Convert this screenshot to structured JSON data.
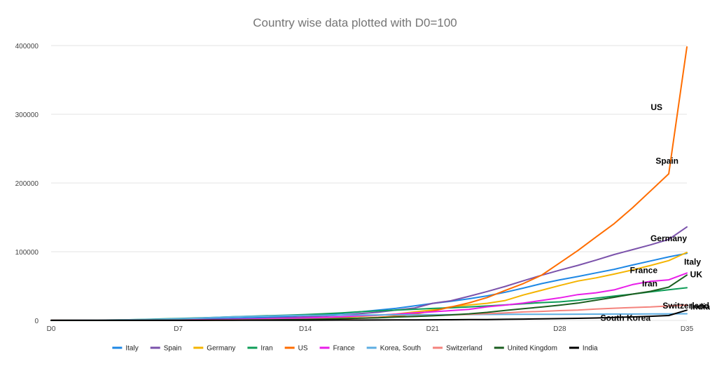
{
  "chart_data": {
    "type": "line",
    "title": "Country wise data plotted with D0=100",
    "xlabel": "",
    "ylabel": "",
    "x": [
      0,
      1,
      2,
      3,
      4,
      5,
      6,
      7,
      8,
      9,
      10,
      11,
      12,
      13,
      14,
      15,
      16,
      17,
      18,
      19,
      20,
      21,
      22,
      23,
      24,
      25,
      26,
      27,
      28,
      29,
      30,
      31,
      32,
      33,
      34,
      35
    ],
    "xlim": [
      0,
      35
    ],
    "x_ticks": [
      {
        "value": 0,
        "label": "D0"
      },
      {
        "value": 7,
        "label": "D7"
      },
      {
        "value": 14,
        "label": "D14"
      },
      {
        "value": 21,
        "label": "D21"
      },
      {
        "value": 28,
        "label": "D28"
      },
      {
        "value": 35,
        "label": "D35"
      }
    ],
    "ylim": [
      0,
      400000
    ],
    "y_ticks": [
      {
        "value": 0,
        "label": "0"
      },
      {
        "value": 100000,
        "label": "100000"
      },
      {
        "value": 200000,
        "label": "200000"
      },
      {
        "value": 300000,
        "label": "300000"
      },
      {
        "value": 400000,
        "label": "400000"
      }
    ],
    "grid": true,
    "legend_position": "bottom",
    "series": [
      {
        "name": "Italy",
        "color": "#1e88e5",
        "values": [
          100,
          200,
          300,
          450,
          650,
          900,
          1100,
          1700,
          2000,
          2500,
          3100,
          3800,
          4600,
          6000,
          7400,
          9000,
          10100,
          12400,
          15100,
          17700,
          21200,
          24700,
          27900,
          31500,
          35700,
          41000,
          47000,
          53600,
          59100,
          63900,
          69200,
          74400,
          80600,
          86500,
          92500,
          97700
        ]
      },
      {
        "name": "Spain",
        "color": "#7b52ab",
        "values": [
          100,
          150,
          200,
          280,
          380,
          500,
          650,
          850,
          1100,
          1450,
          1900,
          2500,
          3200,
          4200,
          5200,
          6400,
          7800,
          9900,
          11800,
          15200,
          18000,
          24900,
          28600,
          35100,
          42000,
          49500,
          57800,
          65700,
          73200,
          80100,
          87900,
          95900,
          103000,
          110000,
          118000,
          136000
        ]
      },
      {
        "name": "Germany",
        "color": "#f4b400",
        "values": [
          100,
          130,
          160,
          210,
          270,
          340,
          420,
          520,
          650,
          800,
          1000,
          1300,
          1600,
          2100,
          2700,
          3600,
          4600,
          5800,
          7300,
          9300,
          12300,
          15300,
          19800,
          22400,
          24900,
          29000,
          37000,
          43900,
          50800,
          57300,
          61900,
          67400,
          73500,
          80000,
          87000,
          99000
        ]
      },
      {
        "name": "Iran",
        "color": "#0f9d58",
        "values": [
          100,
          180,
          320,
          550,
          900,
          1400,
          2100,
          2900,
          3600,
          4400,
          5300,
          6100,
          6900,
          7700,
          8600,
          9700,
          11000,
          12700,
          13900,
          14990,
          16200,
          17400,
          18400,
          19600,
          21000,
          22600,
          24300,
          25900,
          27000,
          29400,
          32300,
          35400,
          38300,
          41500,
          44600,
          47600
        ]
      },
      {
        "name": "US",
        "color": "#ff6d00",
        "values": [
          100,
          100,
          110,
          120,
          130,
          150,
          170,
          210,
          270,
          330,
          420,
          560,
          690,
          830,
          1200,
          1700,
          2300,
          3200,
          4500,
          6400,
          9300,
          13700,
          19400,
          25500,
          33300,
          43700,
          53700,
          65800,
          83800,
          101700,
          121500,
          140900,
          163800,
          188500,
          213400,
          398000
        ]
      },
      {
        "name": "France",
        "color": "#e91ee9",
        "values": [
          100,
          130,
          170,
          210,
          280,
          370,
          460,
          650,
          880,
          1100,
          1400,
          1800,
          2300,
          2800,
          3600,
          4500,
          5400,
          6600,
          7700,
          9100,
          10900,
          12600,
          14300,
          16000,
          19800,
          22300,
          25200,
          29100,
          32900,
          37600,
          40200,
          44500,
          52100,
          56900,
          59100,
          69000
        ]
      },
      {
        "name": "Korea, South",
        "color": "#5dade2",
        "values": [
          100,
          200,
          400,
          600,
          900,
          1300,
          1800,
          2400,
          3200,
          4300,
          5200,
          5800,
          6300,
          7100,
          7400,
          7500,
          7800,
          8000,
          8100,
          8200,
          8300,
          8400,
          8500,
          8600,
          8700,
          8800,
          8900,
          8960,
          9030,
          9100,
          9150,
          9240,
          9330,
          9480,
          9580,
          9660
        ]
      },
      {
        "name": "Switzerland",
        "color": "#f4837d",
        "values": [
          100,
          110,
          130,
          160,
          200,
          260,
          330,
          420,
          520,
          650,
          800,
          1000,
          1200,
          1400,
          1800,
          2200,
          2700,
          3000,
          4000,
          5200,
          6100,
          7000,
          8000,
          8800,
          9800,
          10900,
          12300,
          13200,
          14300,
          15100,
          16500,
          17800,
          18800,
          19600,
          21000,
          22200
        ]
      },
      {
        "name": "United Kingdom",
        "color": "#1b5e20",
        "values": [
          100,
          110,
          120,
          130,
          150,
          180,
          220,
          260,
          320,
          380,
          450,
          590,
          800,
          1100,
          1400,
          1900,
          2700,
          3300,
          3900,
          5000,
          5700,
          6700,
          8100,
          9600,
          11700,
          14500,
          17100,
          19500,
          22100,
          25200,
          29500,
          33700,
          38300,
          42300,
          48500,
          66000
        ]
      },
      {
        "name": "India",
        "color": "#000000",
        "values": [
          100,
          100,
          110,
          110,
          120,
          120,
          130,
          140,
          150,
          170,
          190,
          220,
          250,
          300,
          340,
          400,
          460,
          530,
          620,
          700,
          800,
          900,
          1000,
          1200,
          1300,
          1600,
          1900,
          2300,
          2700,
          3100,
          3600,
          4300,
          5100,
          6000,
          7100,
          15000
        ]
      }
    ],
    "annotations": [
      {
        "text": "US",
        "series": "US"
      },
      {
        "text": "Spain",
        "series": "Spain"
      },
      {
        "text": "Germany",
        "series": "Germany"
      },
      {
        "text": "Italy",
        "series": "Italy"
      },
      {
        "text": "France",
        "series": "France"
      },
      {
        "text": "UK",
        "series": "United Kingdom"
      },
      {
        "text": "Iran",
        "series": "Iran"
      },
      {
        "text": "Switzerland",
        "series": "Switzerland"
      },
      {
        "text": "India",
        "series": "India"
      },
      {
        "text": "South Korea",
        "series": "Korea, South"
      }
    ]
  }
}
